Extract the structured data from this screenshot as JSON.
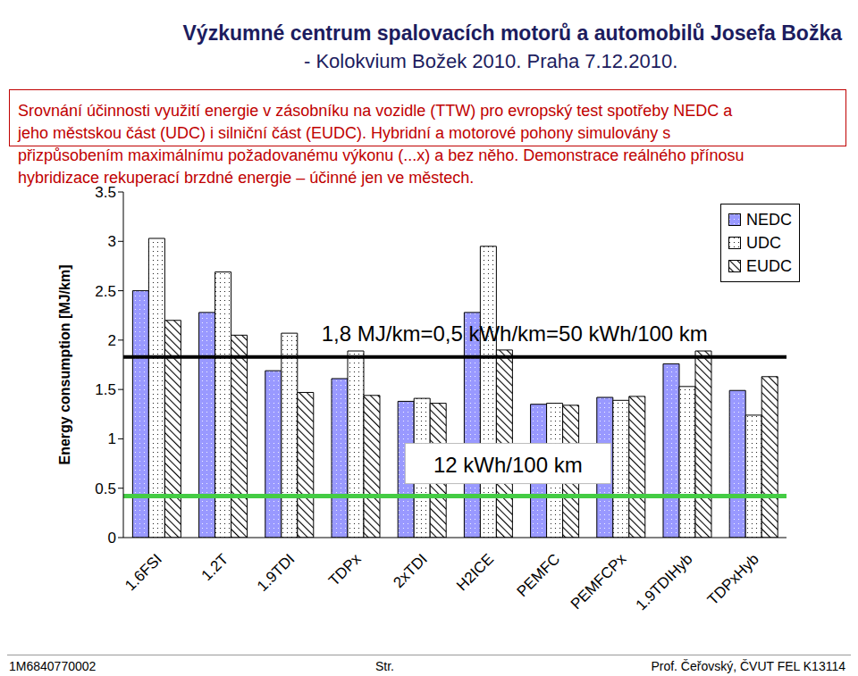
{
  "header": {
    "title": "Výzkumné centrum spalovacích motorů a automobilů Josefa Božka",
    "subtitle": "- Kolokvium Božek 2010. Praha 7.12.2010."
  },
  "description": [
    "Srovnání účinnosti využití energie v zásobníku na vozidle (TTW) pro evropský test spotřeby NEDC a",
    "jeho městskou část (UDC) i silniční část (EUDC). Hybridní a motorové pohony simulovány s",
    "přizpůsobením maximálnímu požadovanému výkonu (...x) a bez něho. Demonstrace reálného přínosu",
    "hybridizace rekuperací brzdné energie – účinné jen ve městech."
  ],
  "chart_data": {
    "type": "bar",
    "categories": [
      "1.6FSI",
      "1.2T",
      "1.9TDI",
      "TDPx",
      "2xTDI",
      "H2ICE",
      "PEMFC",
      "PEMFCPx",
      "1.9TDIHyb",
      "TDPxHyb"
    ],
    "series": [
      {
        "name": "NEDC",
        "color": "#9999ff",
        "values": [
          2.5,
          2.28,
          1.69,
          1.61,
          1.38,
          2.28,
          1.35,
          1.42,
          1.76,
          1.49
        ]
      },
      {
        "name": "UDC",
        "color": "#ffffff",
        "values": [
          3.03,
          2.69,
          2.07,
          1.89,
          1.41,
          2.95,
          1.36,
          1.39,
          1.53,
          1.24
        ]
      },
      {
        "name": "EUDC",
        "color": "#ffffff",
        "values": [
          2.2,
          2.05,
          1.47,
          1.44,
          1.36,
          1.9,
          1.34,
          1.43,
          1.89,
          1.63
        ]
      }
    ],
    "ylabel": "Energy consumption [MJ/km]",
    "ylim": [
      0,
      3.5
    ],
    "yticks": [
      0,
      0.5,
      1,
      1.5,
      2,
      2.5,
      3,
      3.5
    ],
    "grid": false,
    "legend": "upper right",
    "reference_lines": [
      {
        "y": 1.83,
        "label": "1,8 MJ/km=0,5 kWh/km=50 kWh/100 km",
        "color": "#000000"
      },
      {
        "y": 0.42,
        "label": "12 kWh/100 km",
        "color": "#44cc44"
      }
    ]
  },
  "footer": {
    "left": "1M6840770002",
    "center": "Str.",
    "right": "Prof. Čeřovský, ČVUT FEL K13114"
  }
}
